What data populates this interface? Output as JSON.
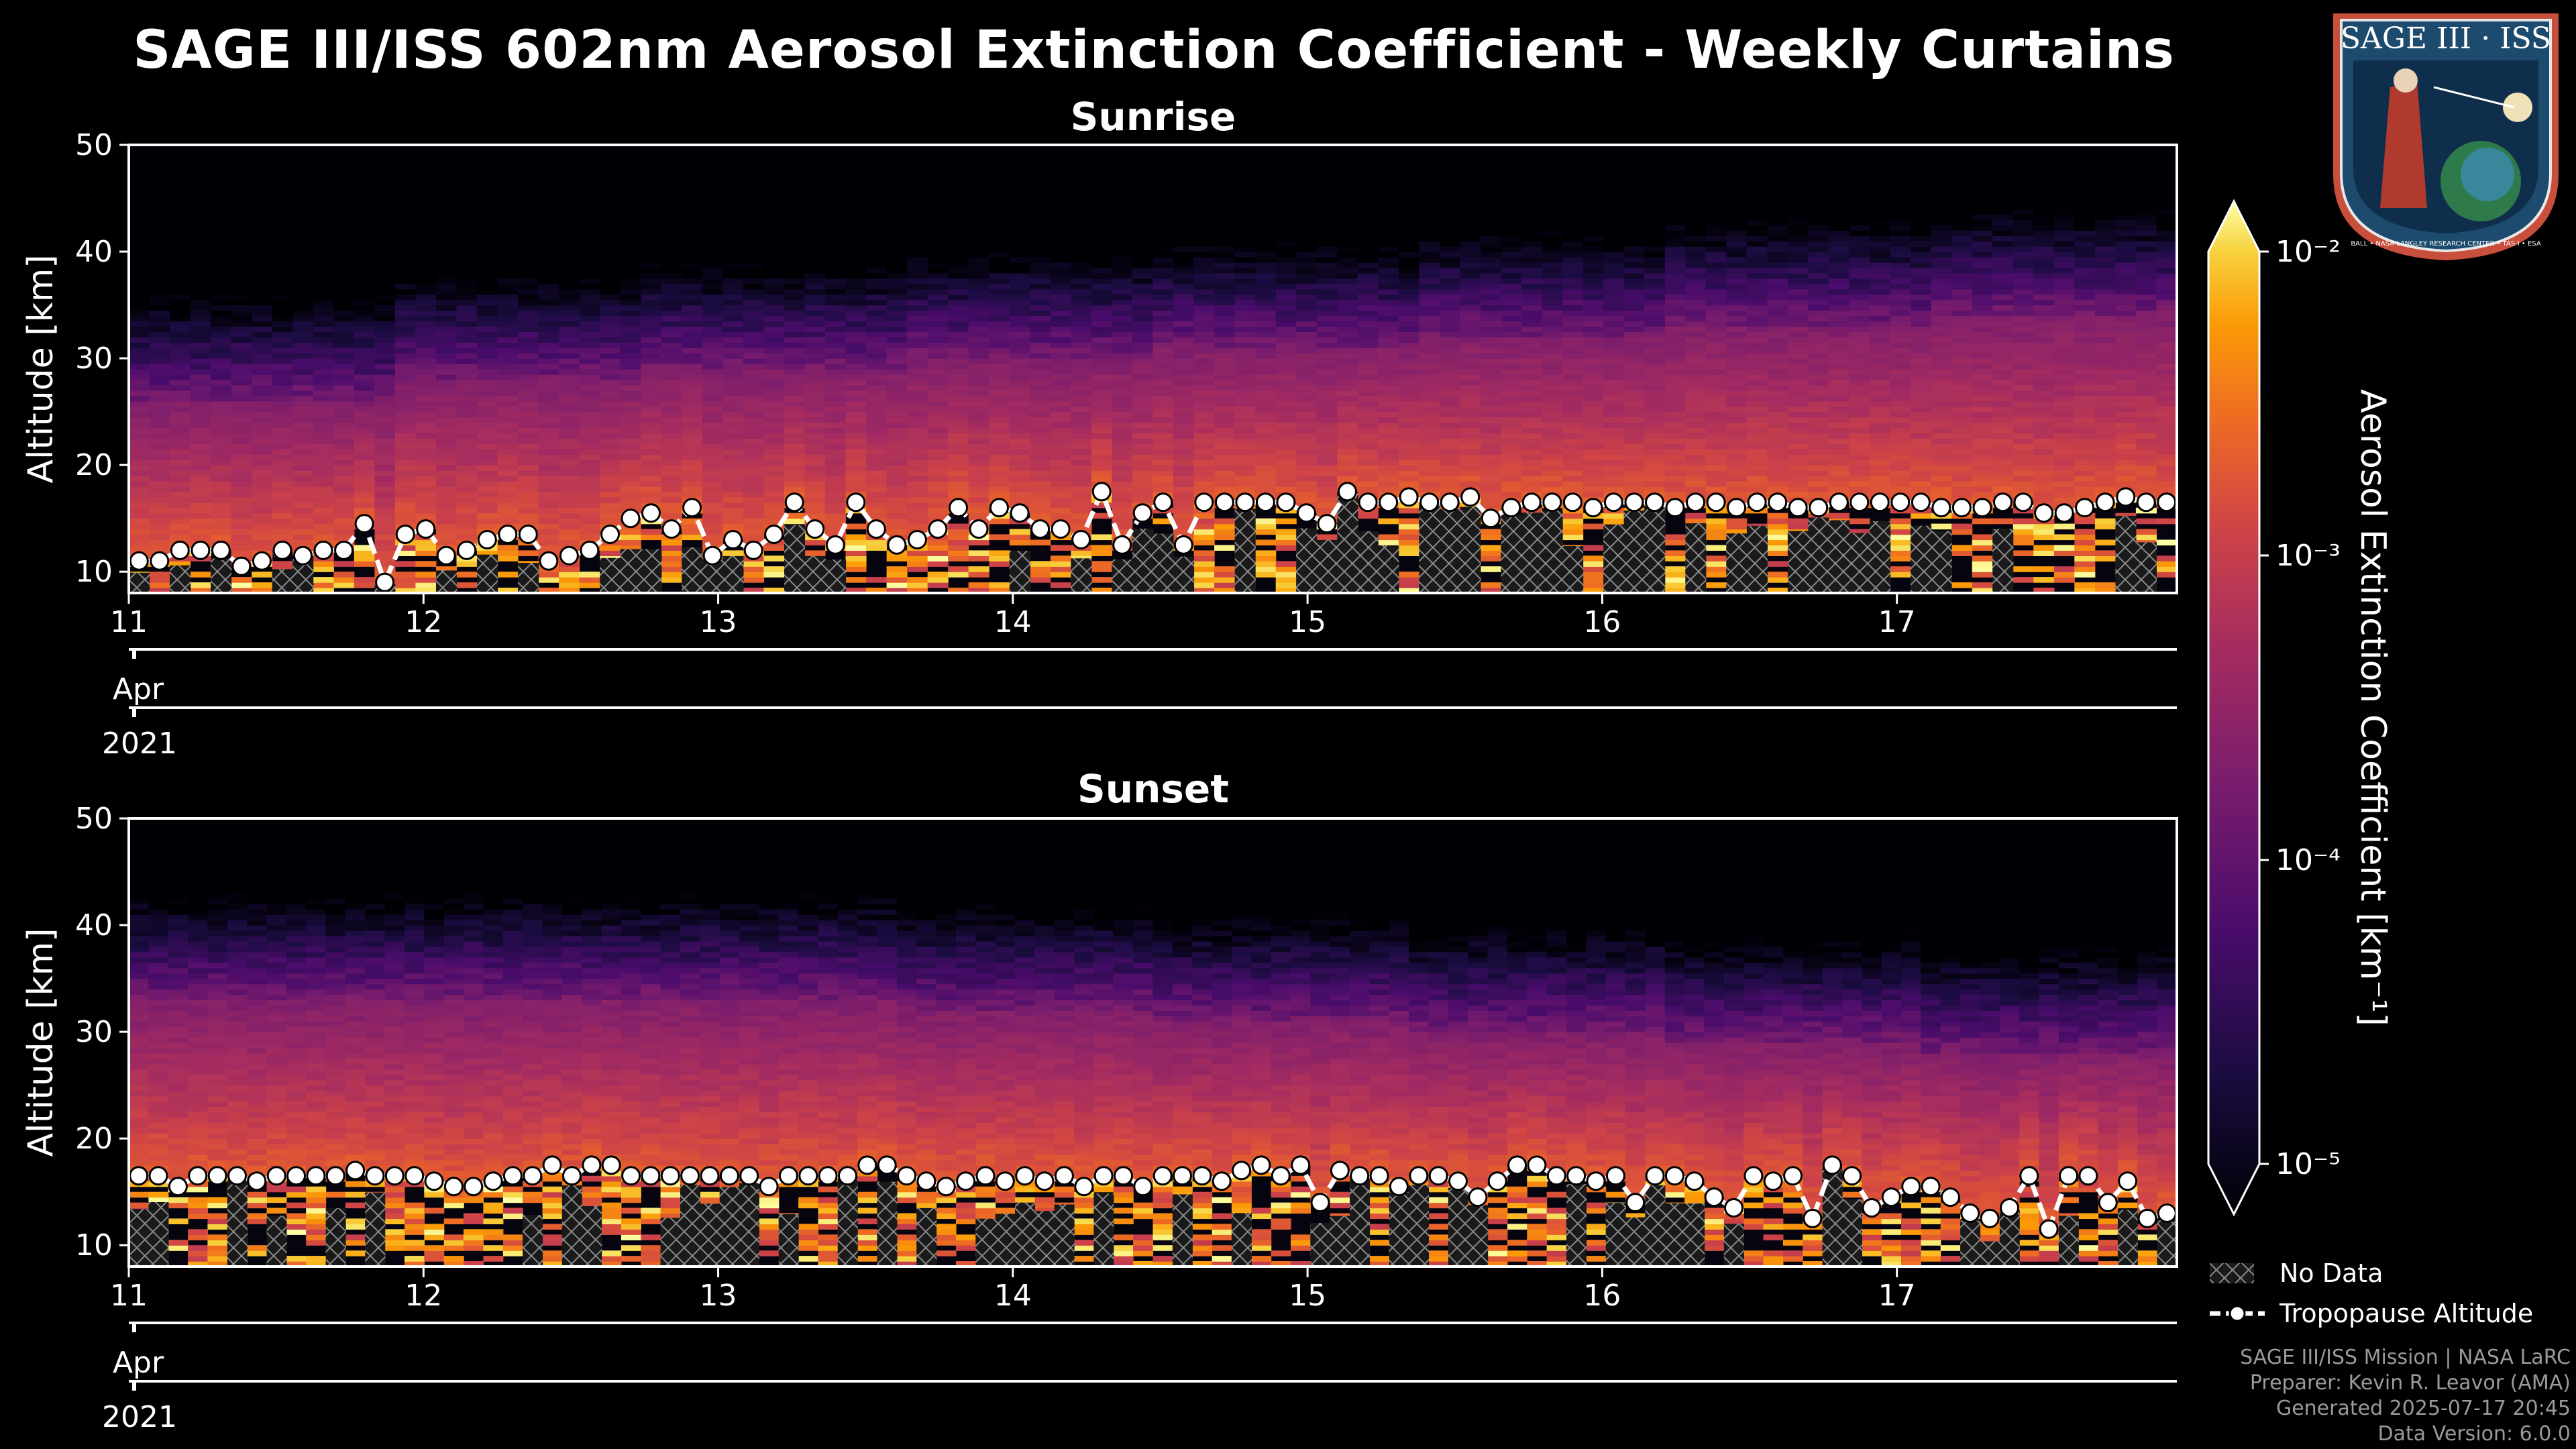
{
  "title": "SAGE III/ISS 602nm Aerosol Extinction Coefficient - Weekly Curtains",
  "logo": {
    "text": "SAGE III · ISS",
    "caption": "BALL • NASA LANGLEY RESEARCH CENTER • TAS-I • ESA"
  },
  "colorbar": {
    "label": "Aerosol Extinction Coefficient [km⁻¹]",
    "colormap": "inferno",
    "scale": "log",
    "range": [
      1e-05,
      0.01
    ],
    "ticks": [
      "10⁻²",
      "10⁻³",
      "10⁻⁴",
      "10⁻⁵"
    ]
  },
  "legend": {
    "no_data": "No Data",
    "tropopause": "Tropopause Altitude"
  },
  "footer": {
    "line1": "SAGE III/ISS Mission | NASA LaRC",
    "line2": "Preparer: Kevin R. Leavor (AMA)",
    "line3": "Generated 2025-07-17 20:45",
    "line4": "Data Version: 6.0.0"
  },
  "chart_data": [
    {
      "type": "heatmap",
      "title": "Sunrise",
      "ylabel": "Altitude [km]",
      "ylim": [
        8,
        50
      ],
      "yticks": [
        "10",
        "20",
        "30",
        "40",
        "50"
      ],
      "xlim": [
        11,
        17.95
      ],
      "xticks": [
        "11",
        "12",
        "13",
        "14",
        "15",
        "16",
        "17"
      ],
      "xticks_pos": [
        11,
        12,
        13,
        14,
        15,
        16,
        17
      ],
      "month_label": "Apr",
      "year_label": "2021",
      "top_of_layer_km": [
        26,
        28,
        29,
        30,
        31,
        32,
        33,
        34
      ],
      "tropopause_km": [
        11,
        11,
        12,
        12,
        12,
        10.5,
        11,
        12,
        11.5,
        12,
        12,
        14.5,
        9,
        13.5,
        14,
        11.5,
        12,
        13,
        13.5,
        13.5,
        11,
        11.5,
        12,
        13.5,
        15,
        15.5,
        14,
        16,
        11.5,
        13,
        12,
        13.5,
        16.5,
        14,
        12.5,
        16.5,
        14,
        12.5,
        13,
        14,
        16,
        14,
        16,
        15.5,
        14,
        14,
        13,
        17.5,
        12.5,
        15.5,
        16.5,
        12.5,
        16.5,
        16.5,
        16.5,
        16.5,
        16.5,
        15.5,
        14.5,
        17.5,
        16.5,
        16.5,
        17,
        16.5,
        16.5,
        17,
        15,
        16,
        16.5,
        16.5,
        16.5,
        16,
        16.5,
        16.5,
        16.5,
        16,
        16.5,
        16.5,
        16,
        16.5,
        16.5,
        16,
        16,
        16.5,
        16.5,
        16.5,
        16.5,
        16.5,
        16,
        16,
        16,
        16.5,
        16.5,
        15.5,
        15.5,
        16,
        16.5,
        17,
        16.5,
        16.5
      ]
    },
    {
      "type": "heatmap",
      "title": "Sunset",
      "ylabel": "Altitude [km]",
      "ylim": [
        8,
        50
      ],
      "yticks": [
        "10",
        "20",
        "30",
        "40",
        "50"
      ],
      "xlim": [
        11,
        17.95
      ],
      "xticks": [
        "11",
        "12",
        "13",
        "14",
        "15",
        "16",
        "17"
      ],
      "xticks_pos": [
        11,
        12,
        13,
        14,
        15,
        16,
        17
      ],
      "month_label": "Apr",
      "year_label": "2021",
      "top_of_layer_km": [
        33,
        33,
        33,
        32,
        31,
        30,
        29,
        28
      ],
      "tropopause_km": [
        16.5,
        16.5,
        15.5,
        16.5,
        16.5,
        16.5,
        16,
        16.5,
        16.5,
        16.5,
        16.5,
        17,
        16.5,
        16.5,
        16.5,
        16,
        15.5,
        15.5,
        16,
        16.5,
        16.5,
        17.5,
        16.5,
        17.5,
        17.5,
        16.5,
        16.5,
        16.5,
        16.5,
        16.5,
        16.5,
        16.5,
        15.5,
        16.5,
        16.5,
        16.5,
        16.5,
        17.5,
        17.5,
        16.5,
        16,
        15.5,
        16,
        16.5,
        16,
        16.5,
        16,
        16.5,
        15.5,
        16.5,
        16.5,
        15.5,
        16.5,
        16.5,
        16.5,
        16,
        17,
        17.5,
        16.5,
        17.5,
        14,
        17,
        16.5,
        16.5,
        15.5,
        16.5,
        16.5,
        16,
        14.5,
        16,
        17.5,
        17.5,
        16.5,
        16.5,
        16,
        16.5,
        14,
        16.5,
        16.5,
        16,
        14.5,
        13.5,
        16.5,
        16,
        16.5,
        12.5,
        17.5,
        16.5,
        13.5,
        14.5,
        15.5,
        15.5,
        14.5,
        13,
        12.5,
        13.5,
        16.5,
        11.5,
        16.5,
        16.5,
        14,
        16,
        12.5,
        13
      ]
    }
  ]
}
